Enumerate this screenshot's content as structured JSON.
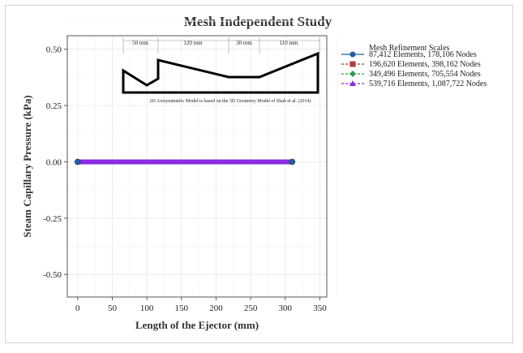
{
  "chart_data": {
    "type": "line",
    "title": "Mesh Independent Study",
    "xlabel": "Length of the Ejector (mm)",
    "ylabel": "Steam Capillary Pressure (kPa)",
    "xlim": [
      -15,
      360
    ],
    "ylim": [
      -0.6,
      0.56
    ],
    "x_ticks": [
      0,
      50,
      100,
      150,
      200,
      250,
      300,
      350
    ],
    "y_ticks": [
      -0.5,
      -0.25,
      0.0,
      0.25,
      0.5
    ],
    "x_tick_labels": [
      "0",
      "50",
      "100",
      "150",
      "200",
      "250",
      "300",
      "350"
    ],
    "y_tick_labels": [
      "-0.50",
      "-0.25",
      "0.00",
      "0.25",
      "0.50"
    ],
    "grid": true,
    "legend": {
      "title": "Mesh Refinement Scales",
      "placement": "right"
    },
    "series": [
      {
        "name": "87,412 Elements, 178,106 Nodes",
        "color": "#1f5fa8",
        "marker": "circle",
        "dash": "solid",
        "x_start": 0,
        "x_end": 310,
        "value": 0.0
      },
      {
        "name": "196,620 Elements, 398,162 Nodes",
        "color": "#b03a3a",
        "marker": "square",
        "dash": "dashed",
        "x_start": 0,
        "x_end": 310,
        "value": 0.0
      },
      {
        "name": "349,496 Elements, 705,554 Nodes",
        "color": "#2e9e4a",
        "marker": "diamond",
        "dash": "dashed",
        "x_start": 0,
        "x_end": 310,
        "value": 0.0
      },
      {
        "name": "539,716 Elements, 1,087,722 Nodes",
        "color": "#8a2be2",
        "marker": "triangle",
        "dash": "dashed",
        "x_start": 0,
        "x_end": 310,
        "value": 0.0
      }
    ],
    "inset": {
      "dimensions": [
        "50 mm",
        "120 mm",
        "30 mm",
        "110 mm"
      ],
      "note": "2D Axisymmetric Model is based on the 3D Geometry Model of Shah et al. (2014)"
    }
  }
}
